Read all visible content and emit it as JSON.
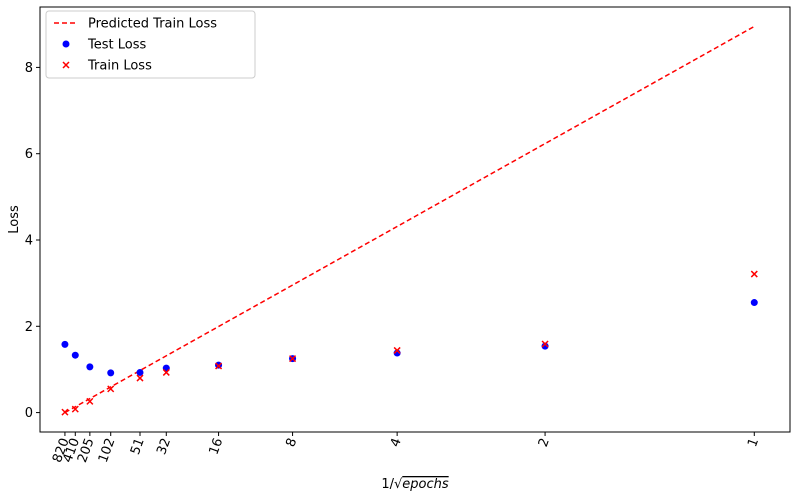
{
  "chart_data": {
    "type": "scatter",
    "title": "",
    "xlabel_prefix": "1/",
    "xlabel_var": "epochs",
    "ylabel": "Loss",
    "x_ticks": [
      {
        "label": "820",
        "value": 0.0349
      },
      {
        "label": "410",
        "value": 0.0494
      },
      {
        "label": "205",
        "value": 0.0698
      },
      {
        "label": "102",
        "value": 0.099
      },
      {
        "label": "51",
        "value": 0.14
      },
      {
        "label": "32",
        "value": 0.1768
      },
      {
        "label": "16",
        "value": 0.25
      },
      {
        "label": "8",
        "value": 0.3536
      },
      {
        "label": "4",
        "value": 0.5
      },
      {
        "label": "2",
        "value": 0.7071
      },
      {
        "label": "1",
        "value": 1.0
      }
    ],
    "y_ticks": [
      0,
      2,
      4,
      6,
      8
    ],
    "xlim": [
      0.0,
      1.05
    ],
    "ylim": [
      -0.45,
      9.4
    ],
    "grid": false,
    "legend_position": "top-left",
    "series": [
      {
        "name": "Predicted Train Loss",
        "kind": "line",
        "style": "dashed",
        "color": "#ff0000",
        "x": [
          0.0349,
          1.0
        ],
        "y": [
          0.0,
          8.95
        ]
      },
      {
        "name": "Test Loss",
        "kind": "scatter",
        "marker": "circle",
        "color": "#0000ff",
        "x": [
          0.0349,
          0.0494,
          0.0698,
          0.099,
          0.14,
          0.1768,
          0.25,
          0.3536,
          0.5,
          0.7071,
          1.0
        ],
        "y": [
          1.58,
          1.33,
          1.06,
          0.92,
          0.93,
          1.03,
          1.1,
          1.25,
          1.38,
          1.54,
          2.55
        ]
      },
      {
        "name": "Train Loss",
        "kind": "scatter",
        "marker": "x",
        "color": "#ff0000",
        "x": [
          0.0349,
          0.0494,
          0.0698,
          0.099,
          0.14,
          0.1768,
          0.25,
          0.3536,
          0.5,
          0.7071,
          1.0
        ],
        "y": [
          0.01,
          0.08,
          0.26,
          0.55,
          0.8,
          0.93,
          1.08,
          1.25,
          1.44,
          1.59,
          3.21
        ]
      }
    ]
  }
}
